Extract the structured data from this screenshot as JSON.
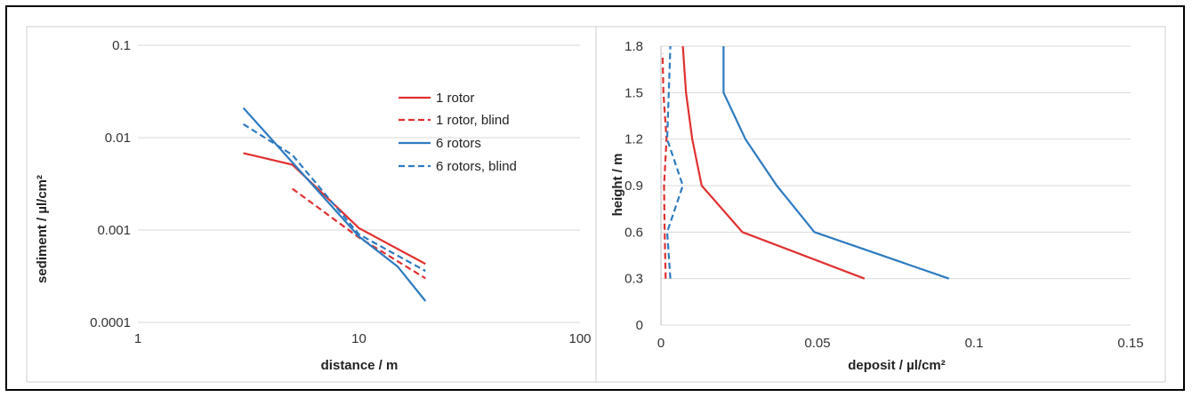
{
  "colors": {
    "red": "#e03030",
    "blue": "#2e7bc0",
    "grid": "#d9d9d9",
    "panel_border": "#c8c8c8"
  },
  "chart_data": [
    {
      "type": "line",
      "xscale": "log",
      "yscale": "log",
      "xlim": [
        1,
        100
      ],
      "ylim": [
        0.0001,
        0.1
      ],
      "xticks": [
        "1",
        "10",
        "100"
      ],
      "yticks": [
        "0.1",
        "0.01",
        "0.001",
        "0.0001"
      ],
      "xlabel": "distance / m",
      "ylabel": "sediment / µl/cm²",
      "grid": "horizontal",
      "legend_position": "top-right",
      "series": [
        {
          "name": "1 rotor",
          "color": "#e03030",
          "dash": false,
          "x": [
            3,
            5,
            10,
            20
          ],
          "y": [
            0.0068,
            0.0051,
            0.00105,
            0.00043
          ]
        },
        {
          "name": "1 rotor, blind",
          "color": "#e03030",
          "dash": true,
          "x": [
            5,
            10,
            20
          ],
          "y": [
            0.0028,
            0.00083,
            0.0003
          ]
        },
        {
          "name": "6 rotors",
          "color": "#2e7bc0",
          "dash": false,
          "x": [
            3,
            10,
            15,
            20
          ],
          "y": [
            0.021,
            0.00085,
            0.0004,
            0.00017
          ]
        },
        {
          "name": "6 rotors, blind",
          "color": "#2e7bc0",
          "dash": true,
          "x": [
            3,
            5,
            10,
            20
          ],
          "y": [
            0.014,
            0.0065,
            0.0009,
            0.00036
          ]
        }
      ]
    },
    {
      "type": "line",
      "xlim": [
        0,
        0.15
      ],
      "ylim": [
        0,
        1.8
      ],
      "xticks": [
        "0",
        "0.05",
        "0.1",
        "0.15"
      ],
      "yticks": [
        "0",
        "0.3",
        "0.6",
        "0.9",
        "1.2",
        "1.5",
        "1.8"
      ],
      "xlabel": "deposit / µl/cm²",
      "ylabel": "height / m",
      "grid": "horizontal",
      "series": [
        {
          "color": "#e03030",
          "dash": false,
          "x": [
            0.065,
            0.026,
            0.013,
            0.01,
            0.008,
            0.007
          ],
          "y": [
            0.3,
            0.6,
            0.9,
            1.2,
            1.5,
            1.8
          ]
        },
        {
          "color": "#e03030",
          "dash": true,
          "x": [
            0.0015,
            0.0012,
            0.001,
            0.0018,
            0.0008,
            0.0005
          ],
          "y": [
            0.3,
            0.6,
            0.9,
            1.2,
            1.5,
            1.75
          ]
        },
        {
          "color": "#2e7bc0",
          "dash": false,
          "x": [
            0.092,
            0.049,
            0.037,
            0.027,
            0.02,
            0.02
          ],
          "y": [
            0.3,
            0.6,
            0.9,
            1.2,
            1.5,
            1.8
          ]
        },
        {
          "color": "#2e7bc0",
          "dash": true,
          "x": [
            0.003,
            0.002,
            0.007,
            0.002,
            0.0025,
            0.003
          ],
          "y": [
            0.3,
            0.6,
            0.9,
            1.2,
            1.5,
            1.8
          ]
        }
      ]
    }
  ]
}
